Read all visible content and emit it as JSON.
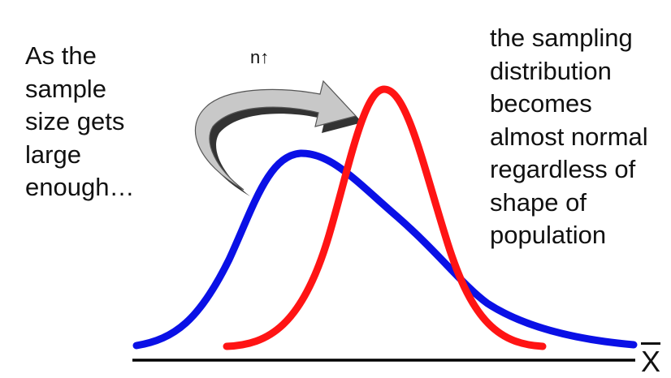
{
  "left_caption": {
    "lines": [
      "As the",
      "sample",
      "size gets",
      "large",
      "enough…"
    ]
  },
  "right_caption": {
    "lines": [
      "the sampling",
      "distribution",
      "becomes",
      "almost normal",
      "regardless of",
      "shape of",
      "population"
    ]
  },
  "arrow_label": "n↑",
  "axis_label": "X",
  "colors": {
    "population_curve": "#0a10e6",
    "sampling_curve": "#ff1414",
    "arrow_fill": "#c8c8c8",
    "arrow_shadow": "#333333",
    "axis": "#000000"
  }
}
